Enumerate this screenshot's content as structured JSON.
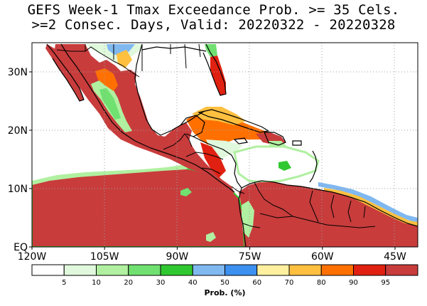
{
  "title": {
    "line1": "GEFS Week-1 Tmax Exceedance Prob. >= 35 Cels.",
    "line2": ">=2 Consec. Days, Valid: 20220322 - 20220328"
  },
  "axes": {
    "lat_ticks": [
      {
        "value": 30,
        "label": "30N"
      },
      {
        "value": 20,
        "label": "20N"
      },
      {
        "value": 10,
        "label": "10N"
      },
      {
        "value": 0,
        "label": "EQ"
      }
    ],
    "lon_ticks": [
      {
        "value": -120,
        "label": "120W"
      },
      {
        "value": -105,
        "label": "105W"
      },
      {
        "value": -90,
        "label": "90W"
      },
      {
        "value": -75,
        "label": "75W"
      },
      {
        "value": -60,
        "label": "60W"
      },
      {
        "value": -45,
        "label": "45W"
      }
    ]
  },
  "colorbar": {
    "title": "Prob. (%)",
    "labels": [
      "5",
      "10",
      "20",
      "30",
      "40",
      "50",
      "60",
      "70",
      "80",
      "90",
      "95"
    ],
    "colors": [
      "#ffffff",
      "#e0f8dc",
      "#b0f0a0",
      "#70e070",
      "#30c830",
      "#80b8f0",
      "#3c90f0",
      "#fff0a0",
      "#ffc040",
      "#ff7000",
      "#e02010",
      "#c83c3c"
    ]
  },
  "map_colors": {
    "ocean": "#ffffff",
    "prob_95": "#c83c3c",
    "prob_90": "#e02010",
    "prob_80": "#ff7000",
    "prob_70": "#ffc040",
    "prob_60": "#fff0a0",
    "prob_50": "#3c90f0",
    "prob_40": "#80b8f0",
    "prob_30": "#30c830",
    "prob_20": "#70e070",
    "prob_10": "#b0f0a0",
    "prob_5": "#e0f8dc",
    "coast": "#000000",
    "grid": "#a0a0a0"
  }
}
